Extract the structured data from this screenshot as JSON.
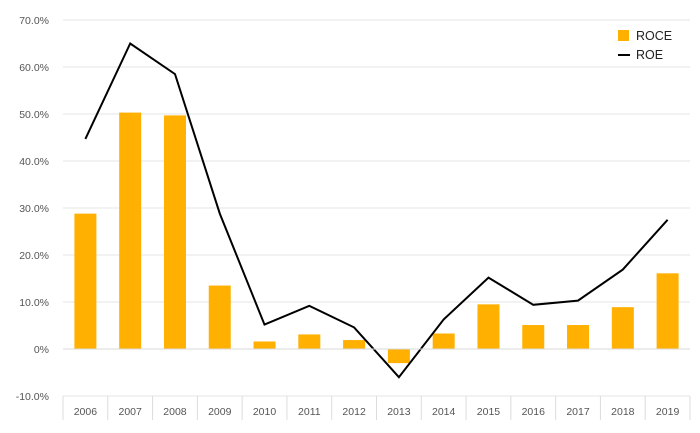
{
  "chart_data": {
    "type": "bar",
    "title": "",
    "xlabel": "",
    "ylabel": "",
    "categories": [
      "2006",
      "2007",
      "2008",
      "2009",
      "2010",
      "2011",
      "2012",
      "2013",
      "2014",
      "2015",
      "2016",
      "2017",
      "2018",
      "2019"
    ],
    "series": [
      {
        "name": "ROCE",
        "type": "bar",
        "color": "#FFB000",
        "values": [
          28.8,
          50.3,
          49.7,
          13.5,
          1.6,
          3.1,
          1.9,
          -3.0,
          3.3,
          9.5,
          5.1,
          5.1,
          8.9,
          16.1
        ]
      },
      {
        "name": "ROE",
        "type": "line",
        "color": "#000000",
        "values": [
          44.7,
          65.0,
          58.5,
          28.8,
          5.2,
          9.2,
          4.6,
          -6.0,
          6.3,
          15.2,
          9.4,
          10.3,
          16.9,
          27.5
        ]
      }
    ],
    "ylim": [
      -10,
      70
    ],
    "y_ticks": [
      "-10.0%",
      "0%",
      "10.0%",
      "20.0%",
      "30.0%",
      "40.0%",
      "50.0%",
      "60.0%",
      "70.0%"
    ],
    "y_tick_values": [
      -10,
      0,
      10,
      20,
      30,
      40,
      50,
      60,
      70
    ],
    "grid": true,
    "legend": {
      "position": "top-right",
      "entries": [
        "ROCE",
        "ROE"
      ]
    }
  }
}
